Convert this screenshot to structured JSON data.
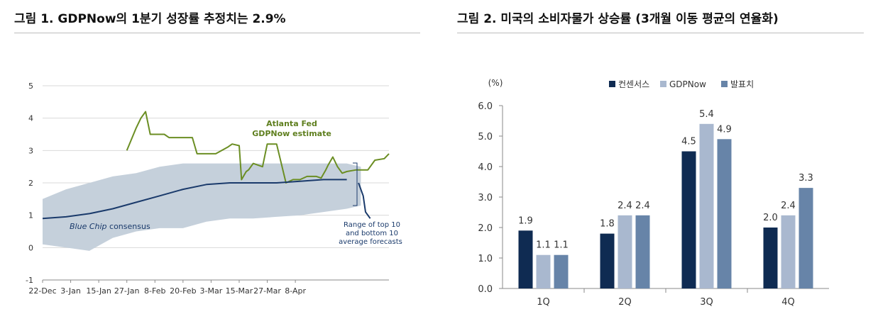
{
  "figure1": {
    "title": "그림 1. GDPNow의 1분기 성장률 추정치는 2.9%"
  },
  "figure2": {
    "title": "그림 2. 미국의 소비자물가 상승률 (3개월 이동 평균의 연율화)"
  },
  "chart_data": [
    {
      "type": "line",
      "title": "그림 1. GDPNow의 1분기 성장률 추정치는 2.9%",
      "x_ticks": [
        "22-Dec",
        "3-Jan",
        "15-Jan",
        "27-Jan",
        "8-Feb",
        "20-Feb",
        "3-Mar",
        "15-Mar",
        "27-Mar",
        "8-Apr"
      ],
      "ylim": [
        -1,
        5
      ],
      "y_ticks": [
        "5",
        "4",
        "3",
        "2",
        "1",
        "0",
        "-1"
      ],
      "grid": true,
      "series": [
        {
          "name": "Atlanta Fed GDPNow estimate",
          "color": "#6b8e23",
          "x": [
            36,
            40,
            42,
            44,
            46,
            52,
            54,
            60,
            64,
            66,
            74,
            79,
            81,
            84,
            85,
            87,
            88,
            90,
            94,
            96,
            98,
            100,
            104,
            107,
            110,
            113,
            115,
            117,
            119,
            121,
            122,
            124,
            126,
            128,
            130,
            134,
            136,
            139,
            142,
            146,
            148
          ],
          "values": [
            3.0,
            3.7,
            4.0,
            4.2,
            3.5,
            3.5,
            3.4,
            3.4,
            3.4,
            2.9,
            2.9,
            3.1,
            3.2,
            3.15,
            2.1,
            2.35,
            2.4,
            2.6,
            2.5,
            3.2,
            3.2,
            3.2,
            2.0,
            2.1,
            2.1,
            2.2,
            2.2,
            2.2,
            2.15,
            2.4,
            2.55,
            2.8,
            2.5,
            2.3,
            2.35,
            2.4,
            2.4,
            2.4,
            2.7,
            2.75,
            2.9
          ]
        },
        {
          "name": "Blue Chip consensus",
          "color": "#1a3a6b",
          "x": [
            0,
            10,
            20,
            30,
            40,
            50,
            60,
            70,
            80,
            90,
            100,
            110,
            120,
            130
          ],
          "values": [
            0.9,
            0.95,
            1.05,
            1.2,
            1.4,
            1.6,
            1.8,
            1.95,
            2.0,
            2.0,
            2.0,
            2.05,
            2.1,
            2.1
          ]
        },
        {
          "name": "Blue Chip consensus (after)",
          "color": "#1a3a6b",
          "x": [
            135,
            137,
            138,
            140
          ],
          "values": [
            2.0,
            1.6,
            1.1,
            0.9
          ]
        }
      ],
      "band": {
        "name": "Range of top 10 and bottom 10 average forecasts",
        "x": [
          0,
          10,
          20,
          30,
          40,
          50,
          60,
          70,
          80,
          90,
          100,
          110,
          120,
          130,
          136
        ],
        "upper": [
          1.5,
          1.8,
          2.0,
          2.2,
          2.3,
          2.5,
          2.6,
          2.6,
          2.6,
          2.6,
          2.6,
          2.6,
          2.6,
          2.6,
          2.5
        ],
        "lower": [
          0.1,
          0.0,
          -0.1,
          0.3,
          0.5,
          0.6,
          0.6,
          0.8,
          0.9,
          0.9,
          0.95,
          1.0,
          1.1,
          1.2,
          1.3
        ],
        "color": "#c5d0db"
      },
      "annotations": {
        "gdpnow_line1": "Atlanta Fed",
        "gdpnow_line2": "GDPNow estimate",
        "consensus_italic": "Blue Chip",
        "consensus_rest": " consensus",
        "range_line1": "Range of top 10",
        "range_line2": "and bottom 10",
        "range_line3": "average forecasts"
      },
      "x_range": [
        0,
        148
      ]
    },
    {
      "type": "bar",
      "title": "그림 2. 미국의 소비자물가 상승률 (3개월 이동 평균의 연율화)",
      "ylabel": "(%)",
      "categories": [
        "1Q",
        "2Q",
        "3Q",
        "4Q"
      ],
      "ylim": [
        0,
        6
      ],
      "y_ticks": [
        "6.0",
        "5.0",
        "4.0",
        "3.0",
        "2.0",
        "1.0",
        "0.0"
      ],
      "series": [
        {
          "name": "컨센서스",
          "color": "#0f2b52",
          "values": [
            1.9,
            1.8,
            4.5,
            2.0
          ],
          "labels": [
            "1.9",
            "1.8",
            "4.5",
            "2.0"
          ]
        },
        {
          "name": "GDPNow",
          "color": "#a9b8cf",
          "values": [
            1.1,
            2.4,
            5.4,
            2.4
          ],
          "labels": [
            "1.1",
            "2.4",
            "5.4",
            "2.4"
          ]
        },
        {
          "name": "발표치",
          "color": "#6784a8",
          "values": [
            1.1,
            2.4,
            4.9,
            3.3
          ],
          "labels": [
            "1.1",
            "2.4",
            "4.9",
            "3.3"
          ]
        }
      ]
    }
  ]
}
